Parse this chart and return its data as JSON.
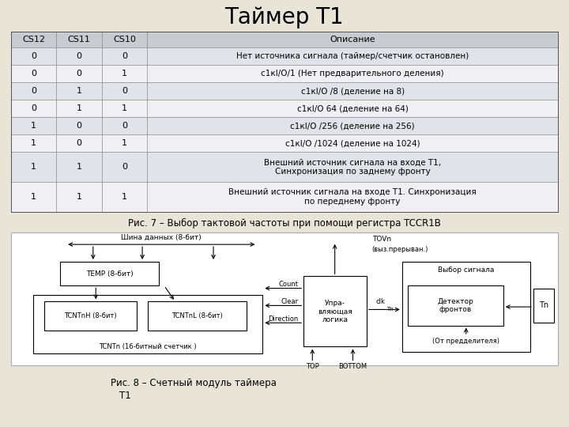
{
  "title": "Таймер Т1",
  "title_fontsize": 20,
  "bg_color": "#e8e4d8",
  "caption1": "Рис. 7 – Выбор тактовой частоты при помощи регистра TCCR1B",
  "caption2_line1": "Рис. 8 – Счетный модуль таймера",
  "caption2_line2": "Т1",
  "headers": [
    "CS12",
    "CS11",
    "CS10",
    "Описание"
  ],
  "rows": [
    [
      "0",
      "0",
      "0",
      "Нет источника сигнала (таймер/счетчик остановлен)"
    ],
    [
      "0",
      "0",
      "1",
      "с1кΙ₀/1 (Нет предварительного деления)"
    ],
    [
      "0",
      "1",
      "0",
      "с1кΙ₀ /8 (деление на 8)"
    ],
    [
      "0",
      "1",
      "1",
      "с1кΙ₀ 64 (деление на 64)"
    ],
    [
      "1",
      "0",
      "0",
      "с1кΙ₀ /256 (деление на 256)"
    ],
    [
      "1",
      "0",
      "1",
      "с1кΙ₀ /1024 (деление на 1024)"
    ],
    [
      "1",
      "1",
      "0",
      "Внешний источник сигнала на входе Т1,\nСинхронизация по заднему фронту"
    ],
    [
      "1",
      "1",
      "1",
      "Внешний источник сигнала на входе Т1. Синхронизация\nпо переднему фронту"
    ]
  ],
  "row_desc_fixed": [
    "Нет источника сигнала (таймер/счетчик остановлен)",
    "с1кI/O/1 (Нет предварительного деления)",
    "с1кI/O /8 (деление на 8)",
    "с1кI/O 64 (деление на 64)",
    "с1кI/O /256 (деление на 256)",
    "с1кI/O /1024 (деление на 1024)",
    "Внешний источник сигнала на входе Т1,\nСинхронизация по заднему фронту",
    "Внешний источник сигнала на входе Т1. Синхронизация\nпо переднему фронту"
  ],
  "font_family": "DejaVu Sans"
}
